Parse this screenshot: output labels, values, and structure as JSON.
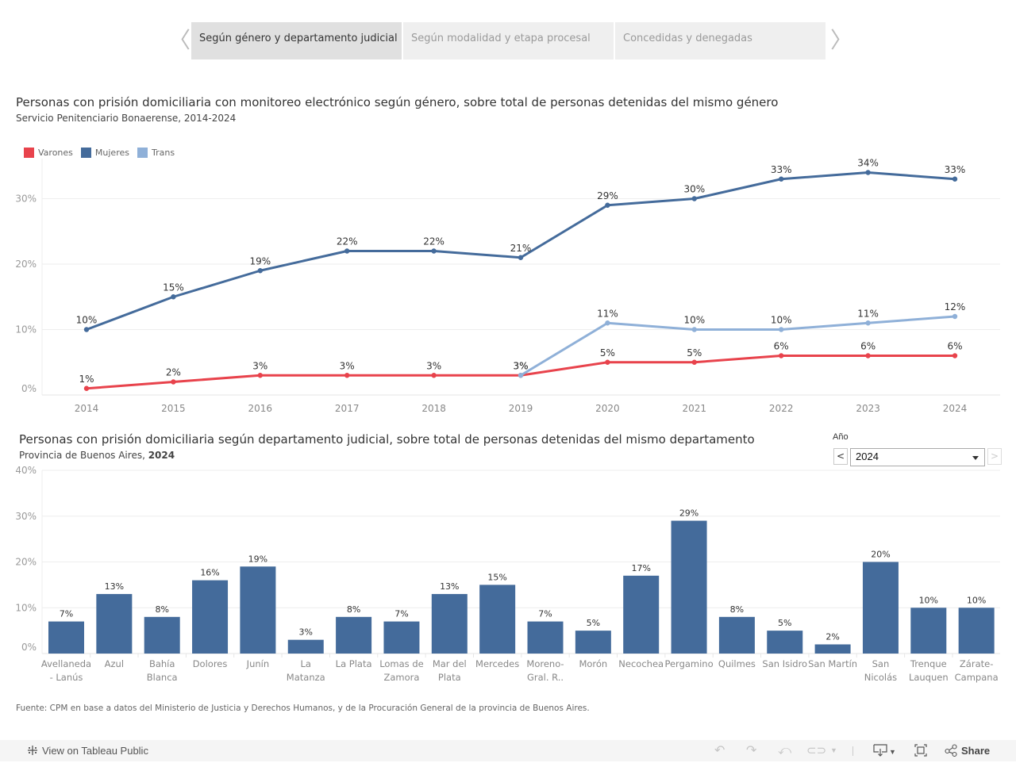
{
  "tabs": {
    "prev_arrow": "〈",
    "next_arrow": "〉",
    "items": [
      {
        "label": "Según género y departamento judicial",
        "active": true
      },
      {
        "label": "Según modalidad y etapa procesal",
        "active": false
      },
      {
        "label": "Concedidas y denegadas",
        "active": false
      }
    ]
  },
  "line_section": {
    "title": "Personas con prisión domiciliaria con monitoreo electrónico según género, sobre total de personas detenidas del mismo género",
    "subtitle": "Servicio Penitenciario Bonaerense, 2014-2024"
  },
  "bar_section": {
    "title": "Personas con prisión domiciliaria según departamento judicial, sobre total de personas detenidas del mismo departamento",
    "subtitle_prefix": "Provincia de Buenos Aires, ",
    "subtitle_year": "2024"
  },
  "year_filter": {
    "label": "Año",
    "value": "2024",
    "prev": "<",
    "next": ">"
  },
  "footnote": "Fuente: CPM en base a datos del Ministerio de Justicia y Derechos Humanos, y de la Procuración General de la provincia de Buenos Aires.",
  "toolbar": {
    "view_on_tableau": "View on Tableau Public",
    "share": "Share"
  },
  "chart_data": [
    {
      "type": "line",
      "title": "Personas con prisión domiciliaria con monitoreo electrónico según género, sobre total de personas detenidas del mismo género",
      "subtitle": "Servicio Penitenciario Bonaerense, 2014-2024",
      "x": [
        "2014",
        "2015",
        "2016",
        "2017",
        "2018",
        "2019",
        "2020",
        "2021",
        "2022",
        "2023",
        "2024"
      ],
      "ylim": [
        0,
        35
      ],
      "yticks": [
        "0%",
        "10%",
        "20%",
        "30%"
      ],
      "ytick_values": [
        0,
        10,
        20,
        30
      ],
      "grid": true,
      "legend_position": "top-left",
      "series": [
        {
          "name": "Varones",
          "color": "#e8434c",
          "values": [
            1,
            2,
            3,
            3,
            3,
            3,
            5,
            5,
            6,
            6,
            6
          ],
          "labels": [
            "1%",
            "2%",
            "3%",
            "3%",
            "3%",
            "3%",
            "5%",
            "5%",
            "6%",
            "6%",
            "6%"
          ]
        },
        {
          "name": "Mujeres",
          "color": "#446b9b",
          "values": [
            10,
            15,
            19,
            22,
            22,
            21,
            29,
            30,
            33,
            34,
            33
          ],
          "labels": [
            "10%",
            "15%",
            "19%",
            "22%",
            "22%",
            "21%",
            "29%",
            "30%",
            "33%",
            "34%",
            "33%"
          ]
        },
        {
          "name": "Trans",
          "color": "#8fb0d8",
          "values": [
            null,
            null,
            null,
            null,
            null,
            3,
            11,
            10,
            10,
            11,
            12
          ],
          "labels": [
            null,
            null,
            null,
            null,
            null,
            "3%",
            "11%",
            "10%",
            "10%",
            "11%",
            "12%"
          ]
        }
      ]
    },
    {
      "type": "bar",
      "title": "Personas con prisión domiciliaria según departamento judicial, sobre total de personas detenidas del mismo departamento",
      "subtitle": "Provincia de Buenos Aires, 2024",
      "categories": [
        [
          "Avellaneda",
          "- Lanús"
        ],
        [
          "Azul"
        ],
        [
          "Bahía",
          "Blanca"
        ],
        [
          "Dolores"
        ],
        [
          "Junín"
        ],
        [
          "La",
          "Matanza"
        ],
        [
          "La Plata"
        ],
        [
          "Lomas de",
          "Zamora"
        ],
        [
          "Mar del",
          "Plata"
        ],
        [
          "Mercedes"
        ],
        [
          "Moreno-",
          "Gral. R.."
        ],
        [
          "Morón"
        ],
        [
          "Necochea"
        ],
        [
          "Pergamino"
        ],
        [
          "Quilmes"
        ],
        [
          "San Isidro"
        ],
        [
          "San Martín"
        ],
        [
          "San",
          "Nicolás"
        ],
        [
          "Trenque",
          "Lauquen"
        ],
        [
          "Zárate-",
          "Campana"
        ]
      ],
      "values": [
        7,
        13,
        8,
        16,
        19,
        3,
        8,
        7,
        13,
        15,
        7,
        5,
        17,
        29,
        8,
        5,
        2,
        20,
        10,
        10
      ],
      "labels": [
        "7%",
        "13%",
        "8%",
        "16%",
        "19%",
        "3%",
        "8%",
        "7%",
        "13%",
        "15%",
        "7%",
        "5%",
        "17%",
        "29%",
        "8%",
        "5%",
        "2%",
        "20%",
        "10%",
        "10%"
      ],
      "color": "#446b9b",
      "ylim": [
        0,
        40
      ],
      "yticks": [
        "0%",
        "10%",
        "20%",
        "30%",
        "40%"
      ],
      "ytick_values": [
        0,
        10,
        20,
        30,
        40
      ],
      "grid": true
    }
  ]
}
